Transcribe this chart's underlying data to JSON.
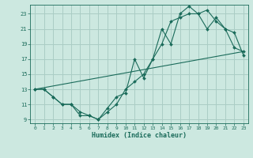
{
  "xlabel": "Humidex (Indice chaleur)",
  "background_color": "#cce8e0",
  "grid_color": "#aacdc5",
  "line_color": "#1a6b5a",
  "xlim": [
    -0.5,
    23.5
  ],
  "ylim": [
    8.5,
    24.2
  ],
  "xticks": [
    0,
    1,
    2,
    3,
    4,
    5,
    6,
    7,
    8,
    9,
    10,
    11,
    12,
    13,
    14,
    15,
    16,
    17,
    18,
    19,
    20,
    21,
    22,
    23
  ],
  "yticks": [
    9,
    11,
    13,
    15,
    17,
    19,
    21,
    23
  ],
  "series": [
    {
      "x": [
        0,
        1,
        2,
        3,
        4,
        5,
        6,
        7,
        8,
        9,
        10,
        11,
        12,
        13,
        14,
        15,
        16,
        17,
        18,
        19,
        20,
        21,
        22,
        23
      ],
      "y": [
        13,
        13,
        12,
        11,
        11,
        9.5,
        9.5,
        9,
        10.5,
        12,
        12.5,
        17,
        14.5,
        17,
        21,
        19,
        23,
        24,
        23,
        21,
        22.5,
        21,
        20.5,
        17.5
      ]
    },
    {
      "x": [
        0,
        1,
        2,
        3,
        4,
        5,
        6,
        7,
        8,
        9,
        10,
        11,
        12,
        13,
        14,
        15,
        16,
        17,
        18,
        19,
        20,
        21,
        22,
        23
      ],
      "y": [
        13,
        13,
        12,
        11,
        11,
        10,
        9.5,
        9,
        10,
        11,
        13,
        14,
        15,
        17,
        19,
        22,
        22.5,
        23,
        23,
        23.5,
        22,
        21,
        18.5,
        18
      ]
    },
    {
      "x": [
        0,
        23
      ],
      "y": [
        13,
        18
      ]
    }
  ]
}
